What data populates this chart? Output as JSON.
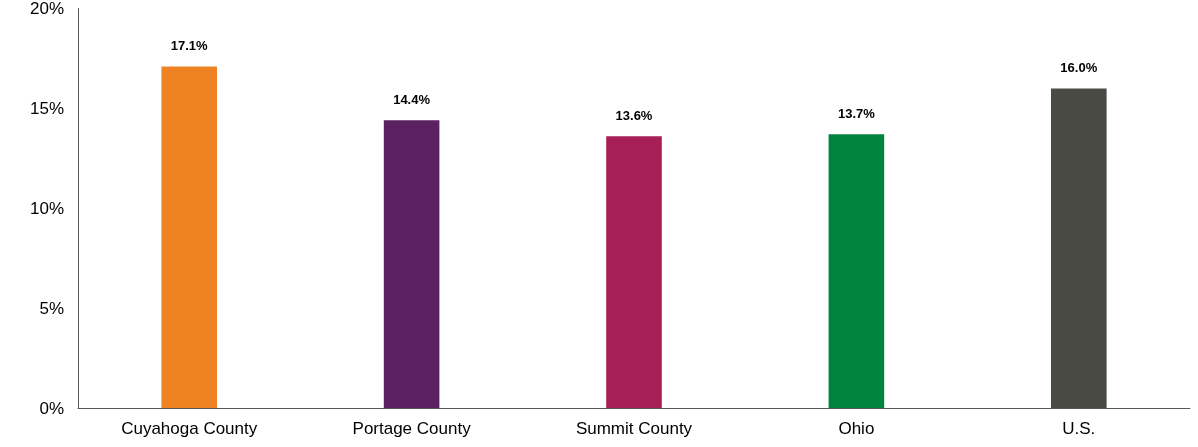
{
  "chart_data": {
    "type": "bar",
    "categories": [
      "Cuyahoga County",
      "Portage County",
      "Summit County",
      "Ohio",
      "U.S."
    ],
    "values": [
      17.1,
      14.4,
      13.6,
      13.7,
      16.0
    ],
    "colors": [
      "#ef8222",
      "#5c2160",
      "#a61f56",
      "#00843d",
      "#4a4a44"
    ],
    "value_labels": [
      "17.1%",
      "14.4%",
      "13.6%",
      "13.7%",
      "16.0%"
    ],
    "ylim": [
      0,
      20
    ],
    "yticks": [
      {
        "value": 0,
        "label": "0%"
      },
      {
        "value": 5,
        "label": "5%"
      },
      {
        "value": 10,
        "label": "10%"
      },
      {
        "value": 15,
        "label": "15%"
      },
      {
        "value": 20,
        "label": "20%"
      }
    ],
    "grid": false
  }
}
